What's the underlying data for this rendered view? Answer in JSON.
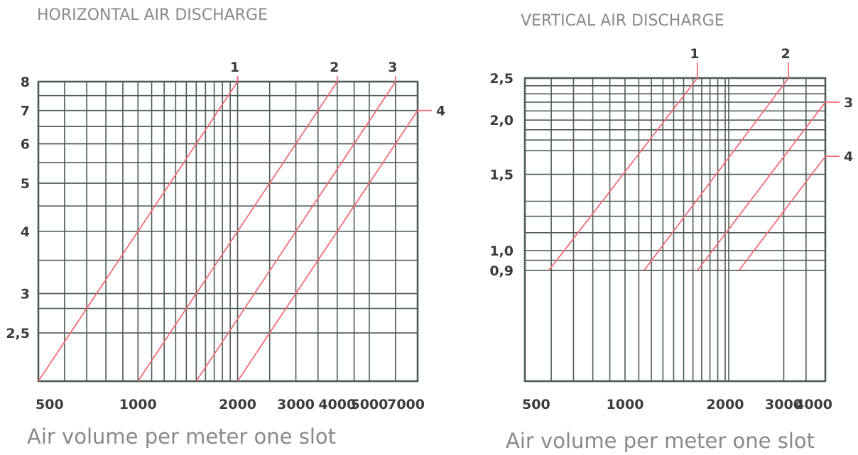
{
  "colors": {
    "grid": "#4f5a55",
    "series": "#f06e78",
    "title": "#8a8a8a",
    "text": "#3c3c3c"
  },
  "chart_data": [
    {
      "type": "line",
      "title": "HORIZONTAL AIR DISCHARGE",
      "xlabel": "Air volume per meter one slot",
      "ylabel": "",
      "xscale": "log",
      "yscale": "log",
      "xlim": [
        500,
        7000
      ],
      "ylim": [
        2,
        8
      ],
      "grid": true,
      "xticks": [
        "500",
        "1000",
        "2000",
        "3000",
        "4000",
        "5000",
        "7000"
      ],
      "xtick_values": [
        500,
        1000,
        2000,
        3000,
        4000,
        5000,
        7000
      ],
      "yticks": [
        "8",
        "7",
        "6",
        "5",
        "4",
        "3",
        "2,5"
      ],
      "ytick_values": [
        8,
        7,
        6,
        5,
        4,
        3,
        2.5
      ],
      "series": [
        {
          "name": "1",
          "x": [
            500,
            2000
          ],
          "y": [
            2,
            8
          ]
        },
        {
          "name": "2",
          "x": [
            1000,
            4000
          ],
          "y": [
            2,
            8
          ]
        },
        {
          "name": "3",
          "x": [
            1500,
            6000
          ],
          "y": [
            2,
            8
          ]
        },
        {
          "name": "4",
          "x": [
            2000,
            7000
          ],
          "y": [
            2,
            7
          ]
        }
      ]
    },
    {
      "type": "line",
      "title": "VERTICAL AIR DISCHARGE",
      "xlabel": "Air volume per meter one slot",
      "ylabel": "",
      "xscale": "log",
      "yscale": "log",
      "xlim": [
        500,
        4000
      ],
      "ylim": [
        0.5,
        2.5
      ],
      "grid": true,
      "xticks": [
        "500",
        "1000",
        "2000",
        "3000",
        "4000"
      ],
      "xtick_values": [
        500,
        1000,
        2000,
        3000,
        4000
      ],
      "yticks": [
        "2,5",
        "2,0",
        "1,5",
        "1,0",
        "0,9"
      ],
      "ytick_values": [
        2.5,
        2.0,
        1.5,
        1.0,
        0.9
      ],
      "series": [
        {
          "name": "1",
          "x": [
            590,
            1650
          ],
          "y": [
            0.9,
            2.5
          ]
        },
        {
          "name": "2",
          "x": [
            1140,
            3100
          ],
          "y": [
            0.9,
            2.5
          ]
        },
        {
          "name": "3",
          "x": [
            1650,
            4000
          ],
          "y": [
            0.9,
            2.2
          ]
        },
        {
          "name": "4",
          "x": [
            2200,
            4000
          ],
          "y": [
            0.9,
            1.65
          ]
        }
      ]
    }
  ]
}
